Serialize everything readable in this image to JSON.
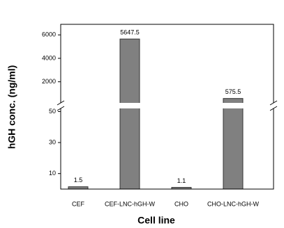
{
  "chart_data": {
    "type": "bar",
    "y_label": "hGH conc. (ng/ml)",
    "x_label": "Cell line",
    "categories": [
      "CEF",
      "CEF-LNC-hGH-W",
      "CHO",
      "CHO-LNC-hGH-W"
    ],
    "values": [
      1.5,
      5647.5,
      1.1,
      575.5
    ],
    "color": "#808080",
    "y_break": true,
    "segments": [
      {
        "ylim": [
          0,
          52
        ],
        "yticks": [
          10,
          30,
          50
        ]
      },
      {
        "ylim": [
          200,
          6900
        ],
        "yticks": [
          2000,
          4000,
          6000
        ]
      }
    ]
  }
}
